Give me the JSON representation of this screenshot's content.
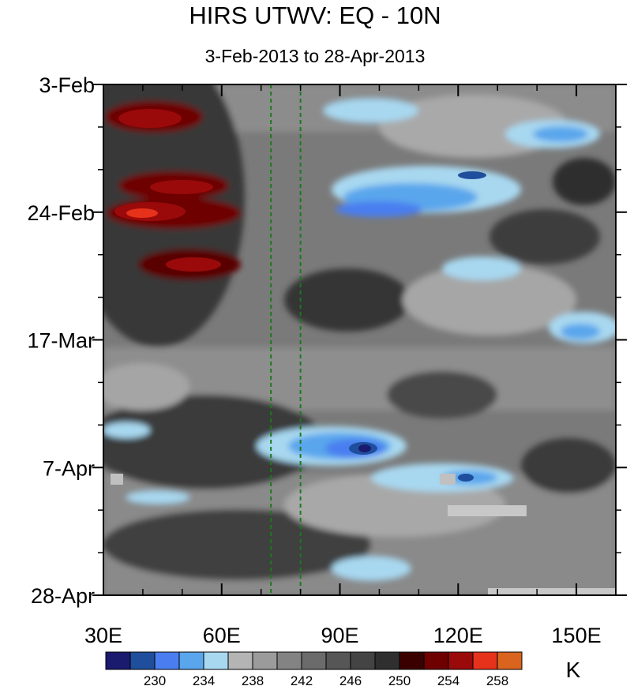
{
  "chart_data": {
    "type": "heatmap",
    "title": "HIRS UTWV: EQ - 10N",
    "subtitle": "3-Feb-2013 to 28-Apr-2013",
    "x_axis": {
      "range": [
        30,
        160
      ],
      "tick_values": [
        30,
        60,
        90,
        120,
        150
      ],
      "tick_labels": [
        "30E",
        "60E",
        "90E",
        "120E",
        "150E"
      ]
    },
    "y_axis": {
      "range_days": [
        0,
        84
      ],
      "tick_values": [
        0,
        21,
        42,
        63,
        84
      ],
      "tick_labels": [
        "3-Feb",
        "24-Feb",
        "17-Mar",
        "7-Apr",
        "28-Apr"
      ]
    },
    "reference_lines_longitude": [
      72.5,
      80
    ],
    "colorbar": {
      "unit": "K",
      "levels_labeled": [
        "230",
        "234",
        "238",
        "242",
        "246",
        "250",
        "254",
        "258"
      ],
      "colors": [
        "#1a1a6e",
        "#1f4f9c",
        "#4a7ef0",
        "#5aa6ec",
        "#a8d8f0",
        "#b4b4b4",
        "#9b9b9b",
        "#838383",
        "#6b6b6b",
        "#565656",
        "#444444",
        "#2f2f2f",
        "#3a0000",
        "#6e0000",
        "#9a0a0a",
        "#e6321a",
        "#d9641e"
      ]
    }
  }
}
